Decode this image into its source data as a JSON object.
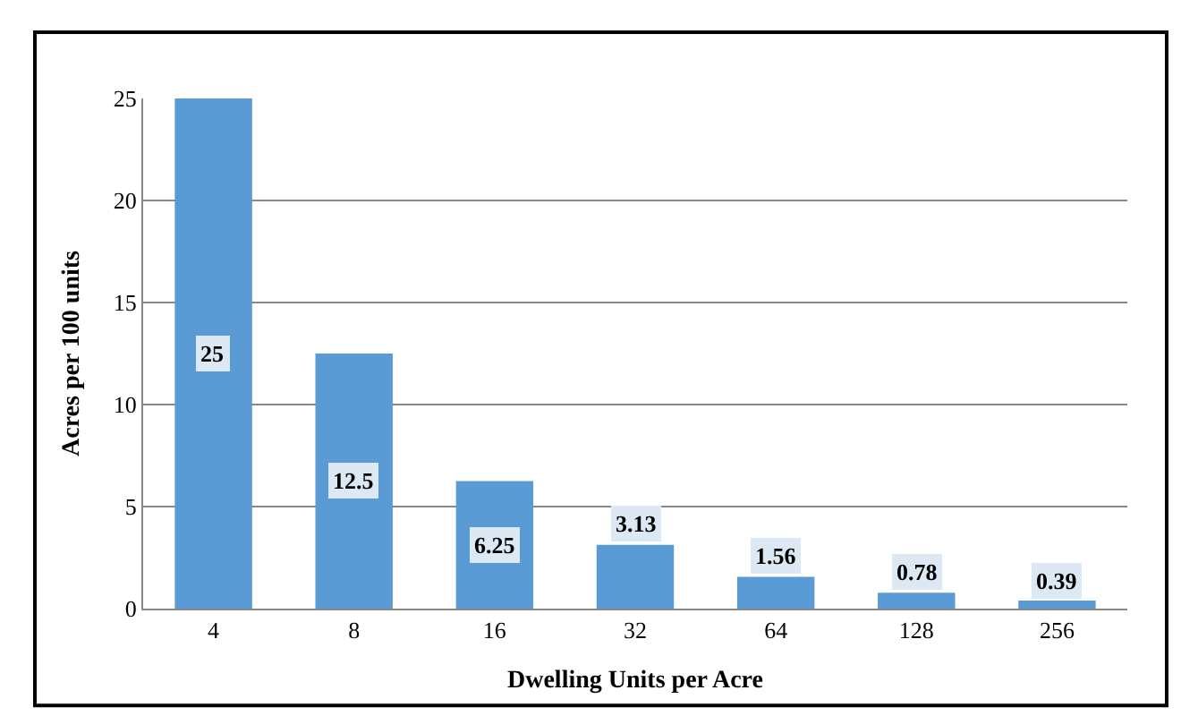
{
  "chart_data": {
    "type": "bar",
    "xlabel": "Dwelling Units per Acre",
    "ylabel": "Acres per 100 units",
    "categories": [
      "4",
      "8",
      "16",
      "32",
      "64",
      "128",
      "256"
    ],
    "values": [
      25,
      12.5,
      6.25,
      3.13,
      1.56,
      0.78,
      0.39
    ],
    "color": "#5b9bd5",
    "ylim": [
      0,
      25
    ],
    "yticks": [
      0,
      5,
      10,
      15,
      20,
      25
    ],
    "grid": "y",
    "data_labels": true
  }
}
